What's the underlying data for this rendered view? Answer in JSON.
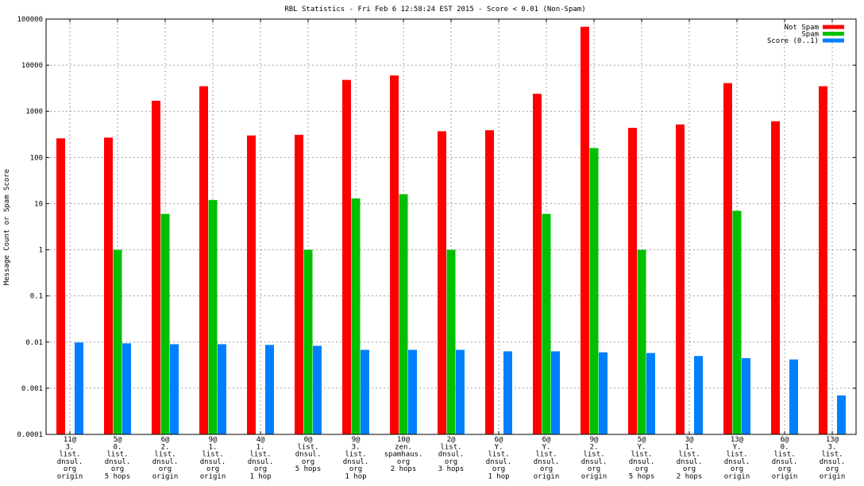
{
  "chart_data": {
    "type": "bar",
    "title": "RBL Statistics - Fri Feb  6 12:58:24 EST 2015 - Score < 0.01 (Non-Spam)",
    "ylabel": "Message Count or Spam Score",
    "xlabel": "",
    "yscale": "log",
    "ylim": [
      0.0001,
      100000
    ],
    "yticks": [
      "0.0001",
      "0.001",
      "0.01",
      "0.1",
      "1",
      "10",
      "100",
      "1000",
      "10000",
      "100000"
    ],
    "grid": true,
    "legend_position": "top-right",
    "categories": [
      [
        "11@",
        "3.",
        "list.",
        "dnsul.",
        "org",
        "origin"
      ],
      [
        "5@",
        "0.",
        "list.",
        "dnsul.",
        "org",
        "5 hops"
      ],
      [
        "6@",
        "2.",
        "list.",
        "dnsul.",
        "org",
        "origin"
      ],
      [
        "9@",
        "1.",
        "list.",
        "dnsul.",
        "org",
        "origin"
      ],
      [
        "4@",
        "1.",
        "list.",
        "dnsul.",
        "org",
        "1 hop"
      ],
      [
        "0@",
        "list.",
        "dnsul.",
        "org",
        "5 hops"
      ],
      [
        "9@",
        "3.",
        "list.",
        "dnsul.",
        "org",
        "1 hop"
      ],
      [
        "10@",
        "zen.",
        "spamhaus.",
        "org",
        "2 hops"
      ],
      [
        "2@",
        "list.",
        "dnsul.",
        "org",
        "3 hops"
      ],
      [
        "6@",
        "Y.",
        "list.",
        "dnsul.",
        "org",
        "1 hop"
      ],
      [
        "6@",
        "Y.",
        "list.",
        "dnsul.",
        "org",
        "origin"
      ],
      [
        "9@",
        "2.",
        "list.",
        "dnsul.",
        "org",
        "origin"
      ],
      [
        "5@",
        "Y.",
        "list.",
        "dnsul.",
        "org",
        "5 hops"
      ],
      [
        "3@",
        "1.",
        "list.",
        "dnsul.",
        "org",
        "2 hops"
      ],
      [
        "13@",
        "Y.",
        "list.",
        "dnsul.",
        "org",
        "origin"
      ],
      [
        "6@",
        "0.",
        "list.",
        "dnsul.",
        "org",
        "origin"
      ],
      [
        "13@",
        "3.",
        "list.",
        "dnsul.",
        "org",
        "origin"
      ]
    ],
    "series": [
      {
        "name": "Not Spam",
        "color": "#ff0000",
        "values": [
          260,
          270,
          1700,
          3500,
          300,
          310,
          4800,
          6000,
          370,
          390,
          2400,
          68000,
          440,
          520,
          4100,
          610,
          3500
        ]
      },
      {
        "name": "Spam",
        "color": "#00c000",
        "values": [
          null,
          1,
          6,
          12,
          null,
          1,
          13,
          16,
          1,
          null,
          6,
          160,
          1,
          null,
          7,
          null,
          null
        ]
      },
      {
        "name": "Score (0..1)",
        "color": "#0080ff",
        "values": [
          0.0098,
          0.0094,
          0.009,
          0.009,
          0.0087,
          0.0083,
          0.0068,
          0.0068,
          0.0068,
          0.0063,
          0.0063,
          0.006,
          0.0058,
          0.005,
          0.0045,
          0.0042,
          0.0007
        ]
      }
    ]
  }
}
